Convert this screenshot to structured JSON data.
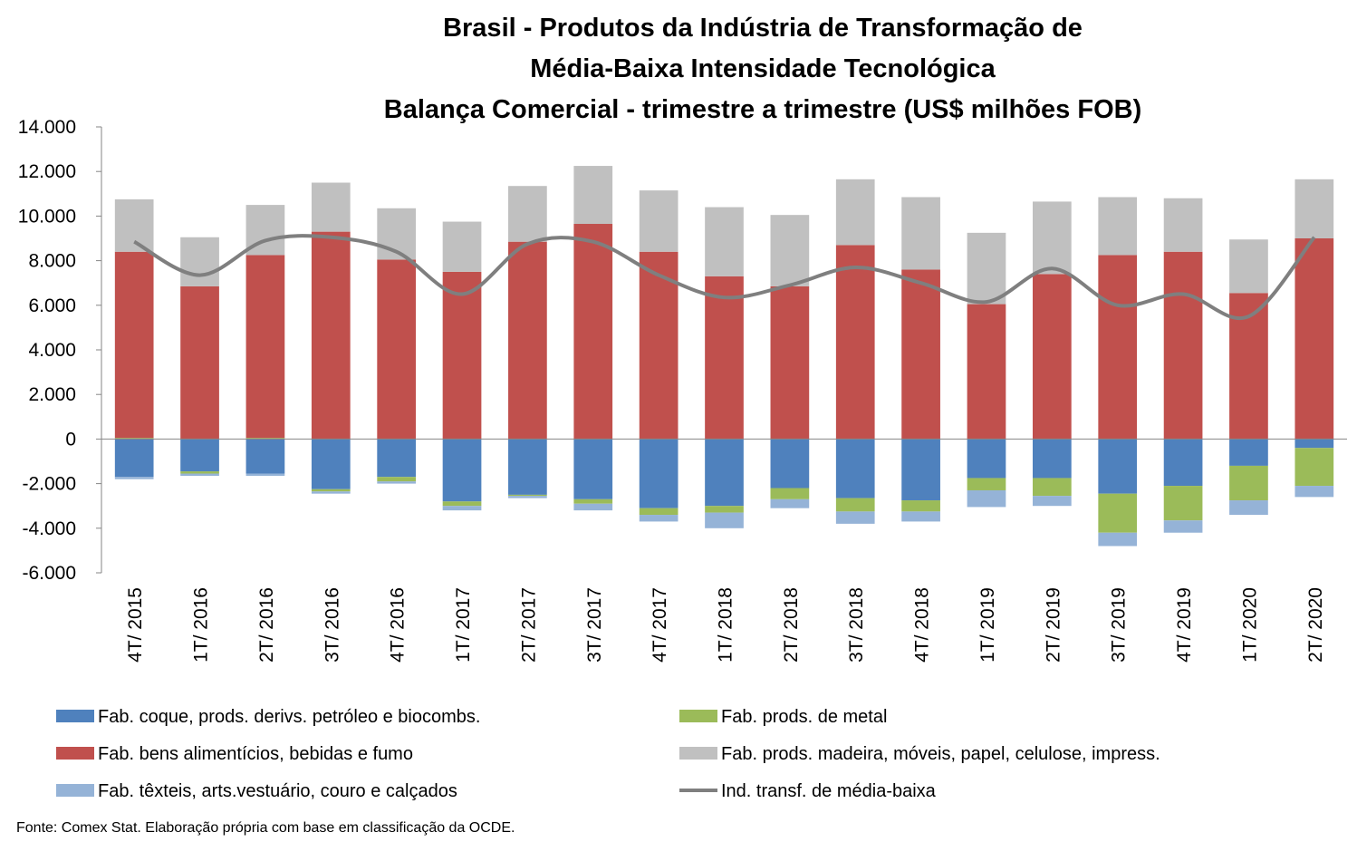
{
  "chart_data": {
    "type": "bar",
    "stacked": true,
    "title": "Brasil - Produtos da Indústria de Transformação de Média-Baixa Intensidade Tecnológica Balança Comercial - trimestre a trimestre (US$ milhões FOB)",
    "title_lines": [
      "Brasil - Produtos da Indústria de Transformação de",
      "Média-Baixa Intensidade Tecnológica",
      "Balança Comercial - trimestre a trimestre (US$ milhões FOB)"
    ],
    "ylim": [
      -6000,
      14000
    ],
    "yticks": [
      -6000,
      -4000,
      -2000,
      0,
      2000,
      4000,
      6000,
      8000,
      10000,
      12000,
      14000
    ],
    "ytick_labels": [
      "-6.000",
      "-4.000",
      "-2.000",
      "0",
      "2.000",
      "4.000",
      "6.000",
      "8.000",
      "10.000",
      "12.000",
      "14.000"
    ],
    "grid": false,
    "legend_position": "bottom",
    "categories": [
      "4T/ 2015",
      "1T/ 2016",
      "2T/ 2016",
      "3T/ 2016",
      "4T/ 2016",
      "1T/ 2017",
      "2T/ 2017",
      "3T/ 2017",
      "4T/ 2017",
      "1T/ 2018",
      "2T/ 2018",
      "3T/ 2018",
      "4T/ 2018",
      "1T/ 2019",
      "2T/ 2019",
      "3T/ 2019",
      "4T/ 2019",
      "1T/ 2020",
      "2T/ 2020"
    ],
    "series": [
      {
        "name": "Fab. coque, prods. derivs. petróleo e biocombs.",
        "color": "#4f81bd",
        "kind": "bar",
        "values": [
          -1700,
          -1450,
          -1550,
          -2250,
          -1700,
          -2800,
          -2500,
          -2700,
          -3100,
          -3000,
          -2200,
          -2650,
          -2750,
          -1750,
          -1750,
          -2450,
          -2100,
          -1200,
          -400
        ]
      },
      {
        "name": "Fab. prods. de metal",
        "color": "#9bbb59",
        "kind": "bar",
        "values": [
          50,
          -100,
          50,
          -100,
          -200,
          -200,
          -50,
          -200,
          -300,
          -300,
          -500,
          -600,
          -500,
          -550,
          -800,
          -1750,
          -1550,
          -1550,
          -1700
        ]
      },
      {
        "name": "Fab. bens alimentícios, bebidas e fumo",
        "color": "#c0504d",
        "kind": "bar",
        "values": [
          8350,
          6850,
          8200,
          9300,
          8050,
          7500,
          8850,
          9650,
          8400,
          7300,
          6850,
          8700,
          7600,
          6050,
          7400,
          8250,
          8400,
          6550,
          9000
        ]
      },
      {
        "name": "Fab. prods. madeira, móveis, papel, celulose, impress.",
        "color": "#c0c0c0",
        "kind": "bar",
        "values": [
          2350,
          2200,
          2250,
          2200,
          2300,
          2250,
          2500,
          2600,
          2750,
          3100,
          3200,
          2950,
          3250,
          3200,
          3250,
          2600,
          2400,
          2400,
          2650
        ]
      },
      {
        "name": "Fab. têxteis, arts.vestuário, couro e calçados",
        "color": "#95b3d7",
        "kind": "bar",
        "values": [
          -100,
          -100,
          -100,
          -100,
          -100,
          -200,
          -100,
          -300,
          -300,
          -700,
          -400,
          -550,
          -450,
          -750,
          -450,
          -600,
          -550,
          -650,
          -500
        ]
      },
      {
        "name": "Ind. transf. de média-baixa",
        "color": "#7f7f7f",
        "kind": "line",
        "values": [
          8850,
          7350,
          8900,
          9050,
          8400,
          6500,
          8750,
          8850,
          7350,
          6350,
          6900,
          7700,
          7000,
          6150,
          7650,
          6000,
          6500,
          5500,
          9050
        ]
      }
    ],
    "legend_order": [
      0,
      1,
      2,
      3,
      4,
      5
    ],
    "source": "Fonte: Comex Stat. Elaboração própria com base em classificação da OCDE."
  }
}
